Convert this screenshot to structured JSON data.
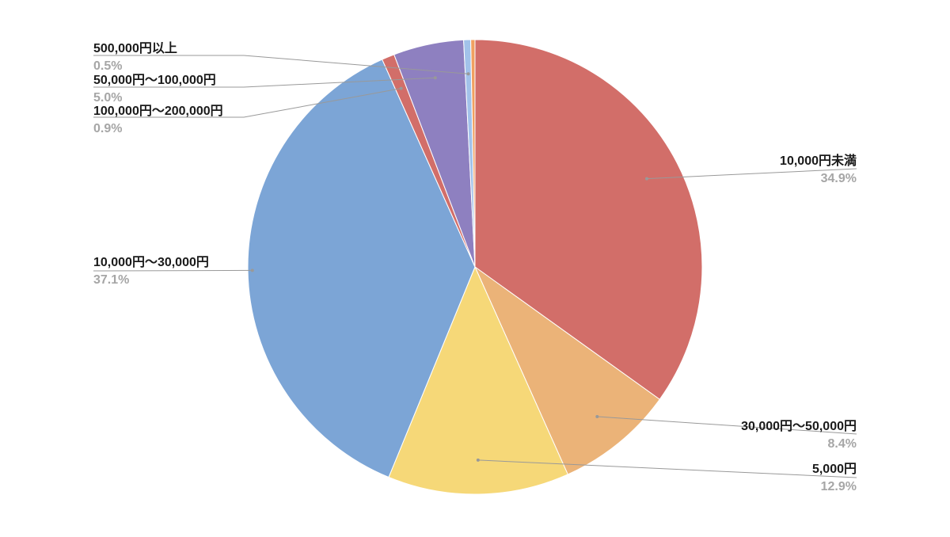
{
  "chart_data": {
    "type": "pie",
    "start_angle_deg": 0,
    "direction": "clockwise",
    "slices": [
      {
        "label": "10,000円未満",
        "value": 34.9,
        "percent_label": "34.9%",
        "color": "#d26e69"
      },
      {
        "label": "30,000円〜50,000円",
        "value": 8.4,
        "percent_label": "8.4%",
        "color": "#ebb378"
      },
      {
        "label": "5,000円",
        "value": 12.9,
        "percent_label": "12.9%",
        "color": "#f6d878"
      },
      {
        "label": "10,000円〜30,000円",
        "value": 37.1,
        "percent_label": "37.1%",
        "color": "#7ca5d6"
      },
      {
        "label": "100,000円〜200,000円",
        "value": 0.9,
        "percent_label": "0.9%",
        "color": "#d26e69"
      },
      {
        "label": "50,000円〜100,000円",
        "value": 5.0,
        "percent_label": "5.0%",
        "color": "#8e80c0"
      },
      {
        "label": "500,000円以上",
        "value": 0.5,
        "percent_label": "0.5%",
        "color": "#a2c2ea"
      },
      {
        "label": "",
        "value": 0.3,
        "percent_label": "",
        "color": "#f0a060"
      }
    ],
    "legend": "none",
    "label_placement": "outside with leader lines"
  }
}
